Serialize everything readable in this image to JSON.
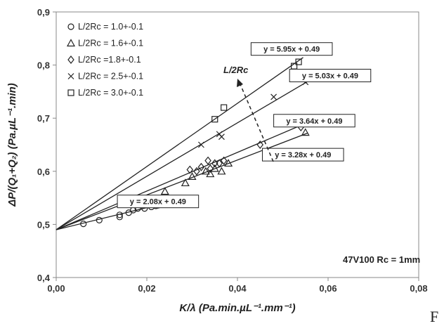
{
  "chart_data": {
    "type": "scatter",
    "title": "",
    "xlabel": "K/λ (Pa.min.µL⁻¹.mm⁻¹)",
    "ylabel": "ΔP/(Q₁+Q₂) (Pa.µL⁻¹.min)",
    "xlim": [
      0,
      0.08
    ],
    "ylim": [
      0.4,
      0.9
    ],
    "x_ticks": [
      "0,00",
      "0,02",
      "0,04",
      "0,06",
      "0,08"
    ],
    "y_ticks": [
      "0,4",
      "0,5",
      "0,6",
      "0,7",
      "0,8",
      "0,9"
    ],
    "grid": false,
    "legend_position": "top-left",
    "series": [
      {
        "name": "L/2Rc = 1.0+-0.1",
        "marker": "circle",
        "x": [
          0.006,
          0.0095,
          0.014,
          0.014,
          0.016,
          0.017,
          0.018,
          0.0195,
          0.021,
          0.022,
          0.0225,
          0.023,
          0.024,
          0.024
        ],
        "y": [
          0.501,
          0.508,
          0.514,
          0.518,
          0.522,
          0.527,
          0.53,
          0.53,
          0.533,
          0.535,
          0.536,
          0.538,
          0.54,
          0.541
        ],
        "fit_slope": 2.08,
        "fit_intercept": 0.49,
        "equation": "y = 2.08x + 0.49"
      },
      {
        "name": "L/2Rc = 1.6+-0.1",
        "marker": "triangle",
        "x": [
          0.024,
          0.0285,
          0.03,
          0.033,
          0.034,
          0.035,
          0.0365,
          0.038,
          0.055
        ],
        "y": [
          0.562,
          0.578,
          0.59,
          0.6,
          0.595,
          0.605,
          0.6,
          0.615,
          0.673
        ],
        "fit_slope": 3.28,
        "fit_intercept": 0.49,
        "equation": "y = 3.28x + 0.49"
      },
      {
        "name": "L/2Rc =1.8+-0.1",
        "marker": "diamond",
        "x": [
          0.0295,
          0.031,
          0.032,
          0.0335,
          0.034,
          0.035,
          0.036,
          0.037,
          0.045,
          0.054
        ],
        "y": [
          0.603,
          0.6,
          0.608,
          0.62,
          0.605,
          0.615,
          0.615,
          0.62,
          0.65,
          0.683
        ],
        "fit_slope": 3.64,
        "fit_intercept": 0.49,
        "equation": "y = 3.64x + 0.49"
      },
      {
        "name": "L/2Rc = 2.5+-0.1",
        "marker": "cross",
        "x": [
          0.032,
          0.036,
          0.0365,
          0.048,
          0.055
        ],
        "y": [
          0.65,
          0.67,
          0.665,
          0.74,
          0.768
        ],
        "fit_slope": 5.03,
        "fit_intercept": 0.49,
        "equation": "y = 5.03x + 0.49"
      },
      {
        "name": "L/2Rc = 3.0+-0.1",
        "marker": "square",
        "x": [
          0.035,
          0.037,
          0.0525,
          0.0535
        ],
        "y": [
          0.698,
          0.72,
          0.798,
          0.806
        ],
        "fit_slope": 5.95,
        "fit_intercept": 0.49,
        "equation": "y = 5.95x + 0.49"
      }
    ],
    "annotations": {
      "arrow_label": "L/2Rc",
      "condition": "47V100 Rc = 1mm"
    }
  },
  "trailing_letter": "F"
}
